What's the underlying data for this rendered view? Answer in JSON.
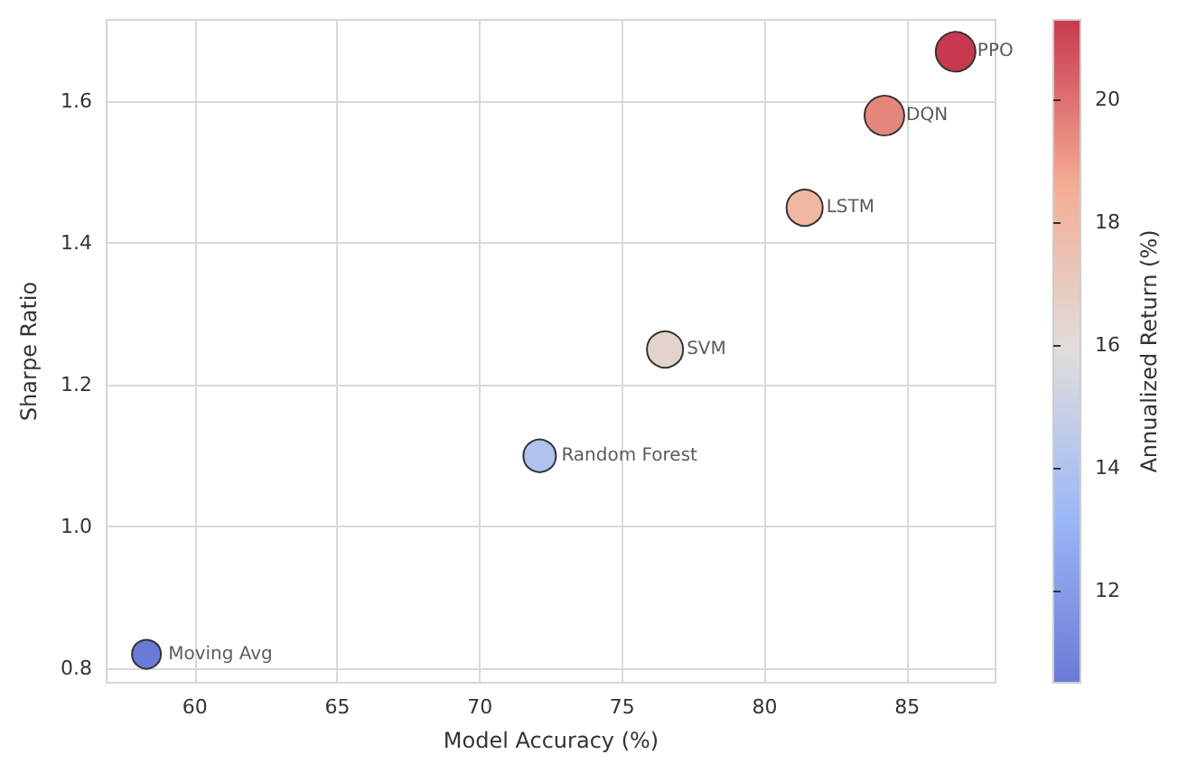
{
  "chart_data": {
    "type": "bubble",
    "xlabel": "Model Accuracy (%)",
    "ylabel": "Sharpe Ratio",
    "clabel": "Annualized Return (%)",
    "x": [
      58.3,
      72.1,
      76.5,
      81.4,
      84.2,
      86.7
    ],
    "values": [
      0.82,
      1.1,
      1.25,
      1.45,
      1.58,
      1.67
    ],
    "sizes": [
      0.53,
      0.67,
      0.83,
      0.83,
      1,
      1
    ],
    "cvalues": [
      10.5,
      14,
      16.5,
      18,
      19.5,
      21.3
    ],
    "annotations": [
      {
        "text": "Moving Avg",
        "x": 58.3,
        "y": 0.82
      },
      {
        "text": "Random Forest",
        "x": 72.1,
        "y": 1.1
      },
      {
        "text": "SVM",
        "x": 76.5,
        "y": 1.25
      },
      {
        "text": "LSTM",
        "x": 81.4,
        "y": 1.45
      },
      {
        "text": "DQN",
        "x": 84.2,
        "y": 1.58
      },
      {
        "text": "PPO",
        "x": 86.7,
        "y": 1.67
      }
    ],
    "xlim": [
      56.9,
      88.1
    ],
    "xticks": [
      60,
      65,
      70,
      75,
      80,
      85
    ],
    "ylim": [
      0.78,
      1.715
    ],
    "yticks": [
      0.8,
      {
        "value": 1,
        "label": "1.0"
      },
      1.2,
      1.4,
      1.6
    ],
    "clim": [
      10.5,
      21.3
    ],
    "cticks": [
      12,
      14,
      16,
      18,
      20
    ],
    "grid": true,
    "marker": "circle"
  }
}
